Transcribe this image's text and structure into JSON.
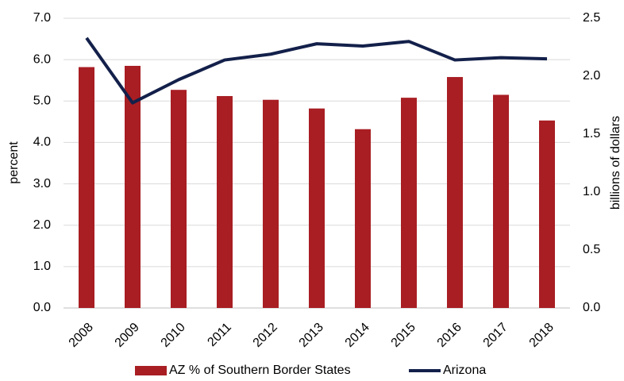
{
  "chart_data": {
    "type": "bar-line",
    "categories": [
      "2008",
      "2009",
      "2010",
      "2011",
      "2012",
      "2013",
      "2014",
      "2015",
      "2016",
      "2017",
      "2018"
    ],
    "series": [
      {
        "name": "AZ % of Southern Border States",
        "type": "bar",
        "color": "#a81e23",
        "axis": "y",
        "values": [
          5.82,
          5.85,
          5.27,
          5.12,
          5.03,
          4.82,
          4.32,
          5.08,
          5.58,
          5.15,
          4.53
        ]
      },
      {
        "name": "Arizona",
        "type": "line",
        "color": "#13204a",
        "axis": "y2",
        "values": [
          2.33,
          1.77,
          1.97,
          2.14,
          2.19,
          2.28,
          2.26,
          2.3,
          2.14,
          2.16,
          2.15
        ]
      }
    ],
    "ylabel": "percent",
    "y2label": "billions of dollars",
    "ylim": [
      0,
      7
    ],
    "yticks": [
      {
        "value": 0,
        "label": "0.0"
      },
      {
        "value": 1,
        "label": "1.0"
      },
      {
        "value": 2,
        "label": "2.0"
      },
      {
        "value": 3,
        "label": "3.0"
      },
      {
        "value": 4,
        "label": "4.0"
      },
      {
        "value": 5,
        "label": "5.0"
      },
      {
        "value": 6,
        "label": "6.0"
      },
      {
        "value": 7,
        "label": "7.0"
      }
    ],
    "y2lim": [
      0,
      2.5
    ],
    "y2ticks": [
      {
        "value": 0,
        "label": "0.0"
      },
      0.5,
      {
        "value": 1,
        "label": "1.0"
      },
      1.5,
      {
        "value": 2,
        "label": "2.0"
      },
      2.5
    ],
    "grid": true,
    "legend": "bottom"
  }
}
